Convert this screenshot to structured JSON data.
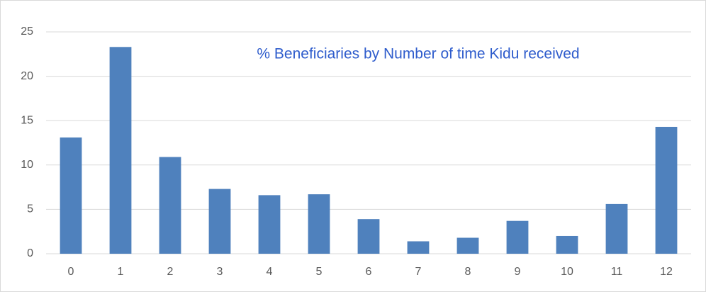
{
  "chart_data": {
    "type": "bar",
    "title": "% Beneficiaries by Number of time Kidu received",
    "categories": [
      "0",
      "1",
      "2",
      "3",
      "4",
      "5",
      "6",
      "7",
      "8",
      "9",
      "10",
      "11",
      "12"
    ],
    "values": [
      13.1,
      23.3,
      10.9,
      7.3,
      6.6,
      6.7,
      3.9,
      1.4,
      1.8,
      3.7,
      2.0,
      5.6,
      14.3
    ],
    "color": "#4f81bd",
    "ylim": [
      0,
      25
    ],
    "yticks": [
      0,
      5,
      10,
      15,
      20,
      25
    ],
    "grid": true
  }
}
